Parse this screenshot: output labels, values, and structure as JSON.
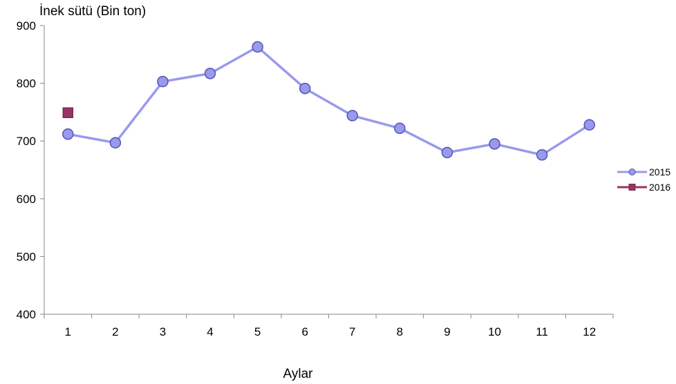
{
  "chart_data": {
    "type": "line",
    "ylabel": "İnek sütü (Bin ton)",
    "xlabel": "Aylar",
    "categories": [
      "1",
      "2",
      "3",
      "4",
      "5",
      "6",
      "7",
      "8",
      "9",
      "10",
      "11",
      "12"
    ],
    "yticks": [
      "400",
      "500",
      "600",
      "700",
      "800",
      "900"
    ],
    "ylim": [
      400,
      900
    ],
    "grid": false,
    "legend_position": "right",
    "series": [
      {
        "name": "2015",
        "color": "#9999ee",
        "marker": "circle",
        "values": [
          712,
          697,
          803,
          817,
          863,
          791,
          744,
          722,
          680,
          695,
          676,
          728
        ]
      },
      {
        "name": "2016",
        "color": "#993366",
        "marker": "square",
        "values": [
          749,
          null,
          null,
          null,
          null,
          null,
          null,
          null,
          null,
          null,
          null,
          null
        ]
      }
    ]
  }
}
